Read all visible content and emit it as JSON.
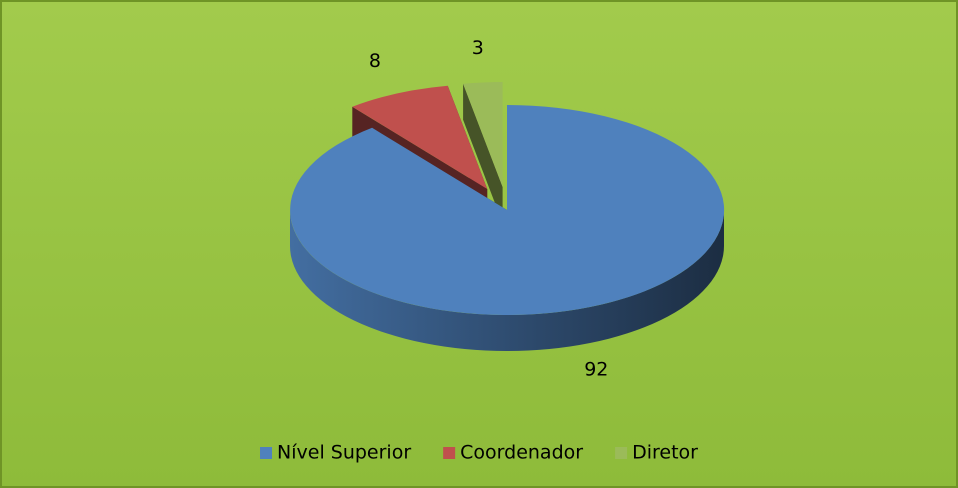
{
  "chart_data": {
    "type": "pie",
    "categories": [
      "Nível Superior",
      "Coordenador",
      "Diretor"
    ],
    "values": [
      92,
      8,
      3
    ],
    "colors": [
      "#4f81bd",
      "#c0504d",
      "#9bbb59"
    ],
    "legend": "bottom"
  }
}
